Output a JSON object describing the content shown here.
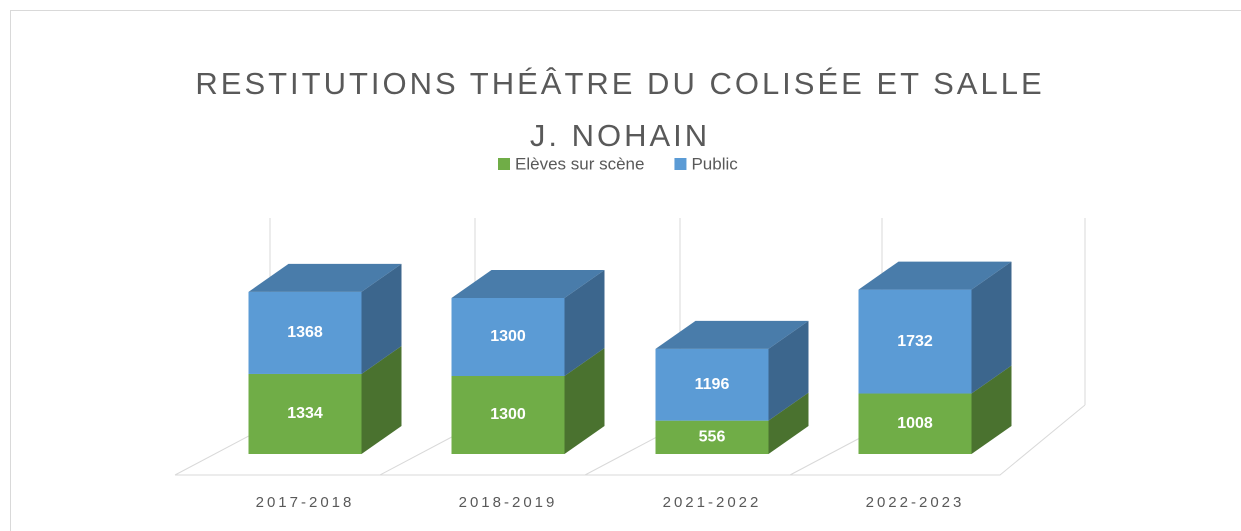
{
  "chart_data": {
    "type": "bar3d_stacked",
    "title": "RESTITUTIONS THÉÂTRE DU COLISÉE ET SALLE J. NOHAIN",
    "categories": [
      "2017-2018",
      "2018-2019",
      "2021-2022",
      "2022-2023"
    ],
    "series": [
      {
        "name": "Elèves sur scène",
        "color": "#70ad47",
        "values": [
          1334,
          1300,
          556,
          1008
        ]
      },
      {
        "name": "Public",
        "color": "#5b9bd5",
        "values": [
          1368,
          1300,
          1196,
          1732
        ]
      }
    ],
    "ylim": [
      0,
      3500
    ],
    "legend": "top"
  }
}
